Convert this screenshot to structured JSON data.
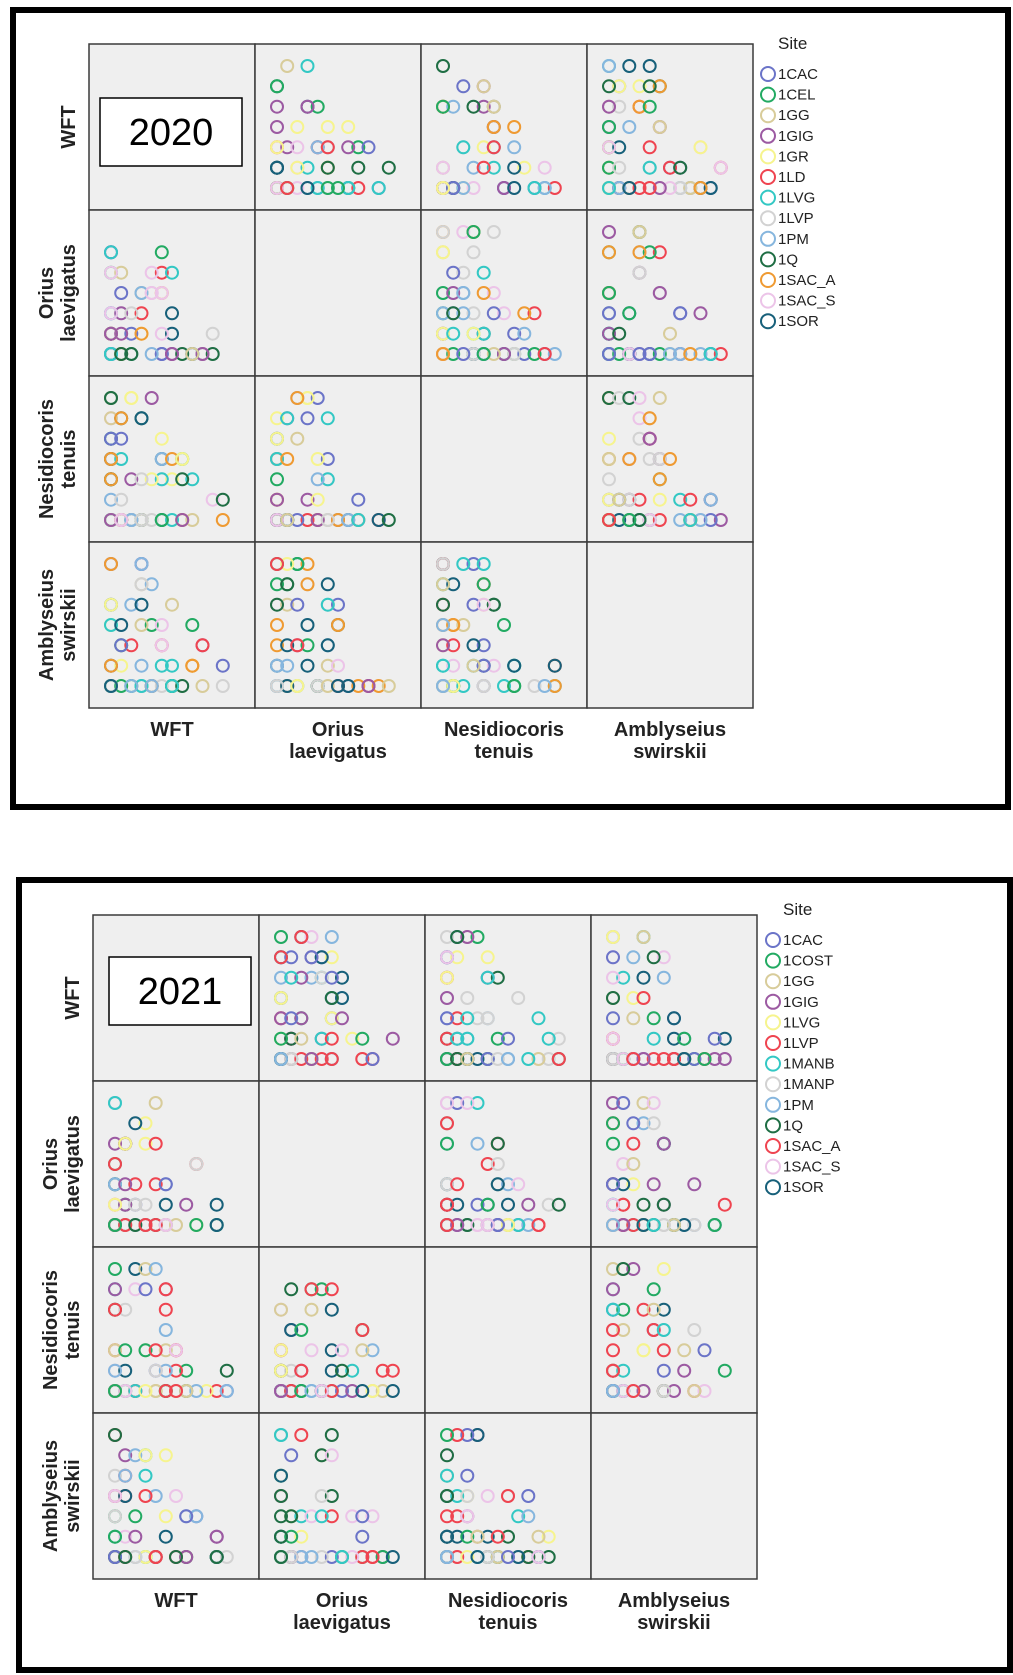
{
  "chart_data": [
    {
      "type": "scatter",
      "subtype": "scatterplot-matrix",
      "year_label": "2020",
      "variables": [
        "WFT",
        "Orius laevigatus",
        "Nesidiocoris tenuis",
        "Amblyseius swirskii"
      ],
      "variable_label_lines": [
        [
          "WFT"
        ],
        [
          "Orius",
          "laevigatus"
        ],
        [
          "Nesidiocoris",
          "tenuis"
        ],
        [
          "Amblyseius",
          "swirskii"
        ]
      ],
      "legend": {
        "title": "Site",
        "placement": "right"
      },
      "series": [
        {
          "name": "1CAC",
          "color": "#6b74c8"
        },
        {
          "name": "1CEL",
          "color": "#22aa62"
        },
        {
          "name": "1GG",
          "color": "#d8cc9a"
        },
        {
          "name": "1GIG",
          "color": "#9c5aa2"
        },
        {
          "name": "1GR",
          "color": "#f6f48e"
        },
        {
          "name": "1LD",
          "color": "#ef4450"
        },
        {
          "name": "1LVG",
          "color": "#33c8c4"
        },
        {
          "name": "1LVP",
          "color": "#d2d2d2"
        },
        {
          "name": "1PM",
          "color": "#86b6de"
        },
        {
          "name": "1Q",
          "color": "#1f6e44"
        },
        {
          "name": "1SAC_A",
          "color": "#ef9a32"
        },
        {
          "name": "1SAC_S",
          "color": "#ecc4e8"
        },
        {
          "name": "1SOR",
          "color": "#17607a"
        }
      ]
    },
    {
      "type": "scatter",
      "subtype": "scatterplot-matrix",
      "year_label": "2021",
      "variables": [
        "WFT",
        "Orius laevigatus",
        "Nesidiocoris tenuis",
        "Amblyseius swirskii"
      ],
      "variable_label_lines": [
        [
          "WFT"
        ],
        [
          "Orius",
          "laevigatus"
        ],
        [
          "Nesidiocoris",
          "tenuis"
        ],
        [
          "Amblyseius",
          "swirskii"
        ]
      ],
      "legend": {
        "title": "Site",
        "placement": "right"
      },
      "series": [
        {
          "name": "1CAC",
          "color": "#6b74c8"
        },
        {
          "name": "1COST",
          "color": "#22aa62"
        },
        {
          "name": "1GG",
          "color": "#d8cc9a"
        },
        {
          "name": "1GIG",
          "color": "#9c5aa2"
        },
        {
          "name": "1LVG",
          "color": "#f6f48e"
        },
        {
          "name": "1LVP",
          "color": "#ef4450"
        },
        {
          "name": "1MANB",
          "color": "#33c8c4"
        },
        {
          "name": "1MANP",
          "color": "#d2d2d2"
        },
        {
          "name": "1PM",
          "color": "#86b6de"
        },
        {
          "name": "1Q",
          "color": "#1f6e44"
        },
        {
          "name": "1SAC_A",
          "color": "#ef4450"
        },
        {
          "name": "1SAC_S",
          "color": "#ecc4e8"
        },
        {
          "name": "1SOR",
          "color": "#17607a"
        }
      ]
    }
  ]
}
